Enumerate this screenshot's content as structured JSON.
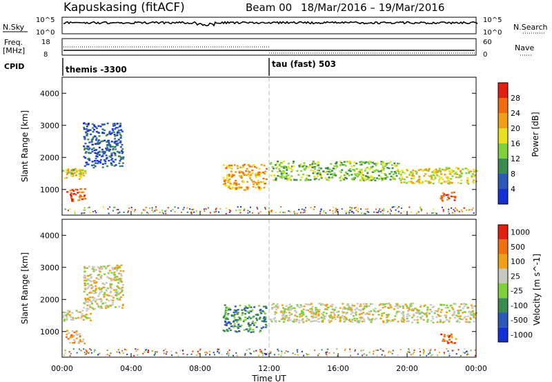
{
  "header": {
    "station": "Kapuskasing (fitACF)",
    "beam": "Beam 00",
    "date_range": "18/Mar/2016 – 19/Mar/2016"
  },
  "top_panels": {
    "nsky_label": "N.Sky",
    "nsearch_label": "N.Search",
    "nsky_ticks": [
      "10^5",
      "10^0"
    ],
    "nsearch_ticks": [
      "10^5",
      "10^0"
    ],
    "freq_label": "Freq.",
    "freq_unit": "[MHz]",
    "freq_ticks": [
      "18",
      "8"
    ],
    "nave_label": "Nave",
    "nave_ticks": [
      "60",
      "0"
    ],
    "cpid_label": "CPID",
    "cpid_segments": [
      {
        "label": "themis -3300",
        "start_hour": 0
      },
      {
        "label": "tau (fast) 503",
        "start_hour": 12
      }
    ]
  },
  "chart_data": [
    {
      "type": "heatmap",
      "title": "",
      "ylabel": "Slant Range [km]",
      "xlabel": "",
      "ylim": [
        200,
        4500
      ],
      "yticks": [
        1000,
        2000,
        3000,
        4000
      ],
      "colorbar": {
        "label": "Power [dB]",
        "ticks": [
          "4",
          "8",
          "12",
          "16",
          "20",
          "24",
          "28"
        ],
        "colors": [
          "#1432d2",
          "#2d58b8",
          "#3b8a4e",
          "#7fd03a",
          "#e8e020",
          "#f0a018",
          "#f06a10",
          "#e02010"
        ]
      },
      "echo_regions": [
        {
          "t0": 0.0,
          "t1": 1.2,
          "r0": 1350,
          "r1": 1700,
          "level": 5
        },
        {
          "t0": 0.0,
          "t1": 1.6,
          "r0": 1500,
          "r1": 1650,
          "level": 3
        },
        {
          "t0": 0.2,
          "t1": 1.3,
          "r0": 650,
          "r1": 1050,
          "level": 6
        },
        {
          "t0": 1.2,
          "t1": 3.5,
          "r0": 1700,
          "r1": 3100,
          "level": 1
        },
        {
          "t0": 9.3,
          "t1": 11.8,
          "r0": 1000,
          "r1": 1800,
          "level": 5
        },
        {
          "t0": 12.0,
          "t1": 19.5,
          "r0": 1300,
          "r1": 1900,
          "level": 3
        },
        {
          "t0": 19.5,
          "t1": 24.0,
          "r0": 1200,
          "r1": 1700,
          "level": 4
        },
        {
          "t0": 21.9,
          "t1": 22.8,
          "r0": 650,
          "r1": 950,
          "level": 6
        }
      ]
    },
    {
      "type": "heatmap",
      "title": "",
      "ylabel": "Slant Range [km]",
      "xlabel": "Time UT",
      "ylim": [
        200,
        4500
      ],
      "yticks": [
        1000,
        2000,
        3000,
        4000
      ],
      "xticks": [
        "00:00",
        "04:00",
        "08:00",
        "12:00",
        "16:00",
        "20:00",
        "00:00"
      ],
      "colorbar": {
        "label": "Velocity [m s^-1]",
        "ticks": [
          "1000",
          "500",
          "100",
          "25",
          "-25",
          "-100",
          "-500",
          "-1000"
        ],
        "colors": [
          "#1432d2",
          "#2d58b8",
          "#3b8a4e",
          "#7fd03a",
          "#c8c8c0",
          "#f0a018",
          "#f07010",
          "#e02010"
        ]
      },
      "echo_regions": [
        {
          "t0": 0.0,
          "t1": 1.6,
          "r0": 1350,
          "r1": 1700,
          "level": 4
        },
        {
          "t0": 0.2,
          "t1": 1.3,
          "r0": 650,
          "r1": 1050,
          "level": 5
        },
        {
          "t0": 1.2,
          "t1": 3.5,
          "r0": 1700,
          "r1": 3100,
          "level": 4
        },
        {
          "t0": 9.3,
          "t1": 11.8,
          "r0": 1000,
          "r1": 1850,
          "level": 2
        },
        {
          "t0": 12.0,
          "t1": 24.0,
          "r0": 1300,
          "r1": 1900,
          "level": 4
        },
        {
          "t0": 21.9,
          "t1": 22.8,
          "r0": 650,
          "r1": 950,
          "level": 6
        }
      ]
    }
  ]
}
